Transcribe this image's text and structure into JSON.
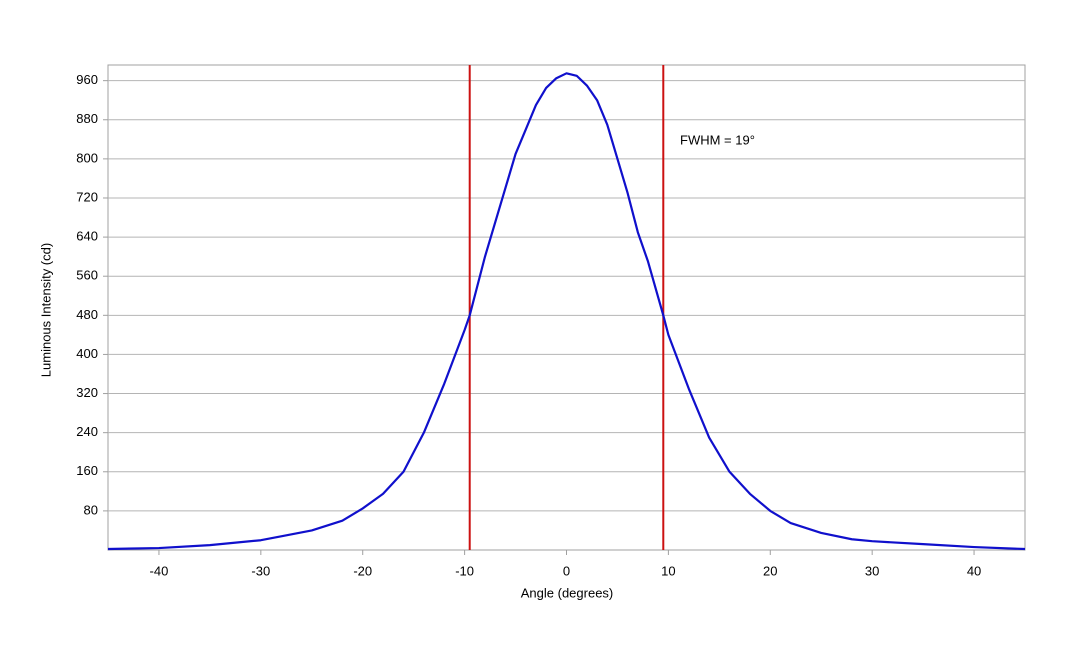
{
  "chart_data": {
    "type": "line",
    "x_label": "Angle (degrees)",
    "y_label": "Luminous Intensity (cd)",
    "annotation": "FWHM = 19°",
    "x": [
      -45,
      -40,
      -35,
      -30,
      -28,
      -25,
      -22,
      -20,
      -18,
      -16,
      -14,
      -12,
      -10,
      -9.5,
      -8,
      -6,
      -5,
      -4,
      -3,
      -2,
      -1,
      0,
      1,
      2,
      3,
      4,
      5,
      6,
      7,
      8,
      9.5,
      10,
      12,
      14,
      16,
      18,
      20,
      22,
      25,
      28,
      30,
      35,
      40,
      45
    ],
    "series": [
      {
        "color": "#1010cc",
        "values": [
          2,
          4,
          10,
          20,
          28,
          40,
          60,
          85,
          115,
          160,
          240,
          340,
          450,
          480,
          600,
          740,
          810,
          860,
          910,
          945,
          965,
          975,
          970,
          950,
          920,
          870,
          800,
          730,
          650,
          590,
          480,
          440,
          330,
          230,
          160,
          115,
          80,
          55,
          35,
          22,
          18,
          12,
          6,
          2
        ]
      }
    ],
    "vlines": [
      {
        "value": -9.5,
        "color": "#cc1111"
      },
      {
        "value": 9.5,
        "color": "#cc1111"
      }
    ],
    "xlim": [
      -45,
      45
    ],
    "ylim": [
      0,
      992
    ],
    "xticks": [
      -40,
      -30,
      -20,
      -10,
      0,
      10,
      20,
      30,
      40
    ],
    "yticks": [
      80,
      160,
      240,
      320,
      400,
      480,
      560,
      640,
      720,
      800,
      880,
      960
    ],
    "grid": true
  }
}
